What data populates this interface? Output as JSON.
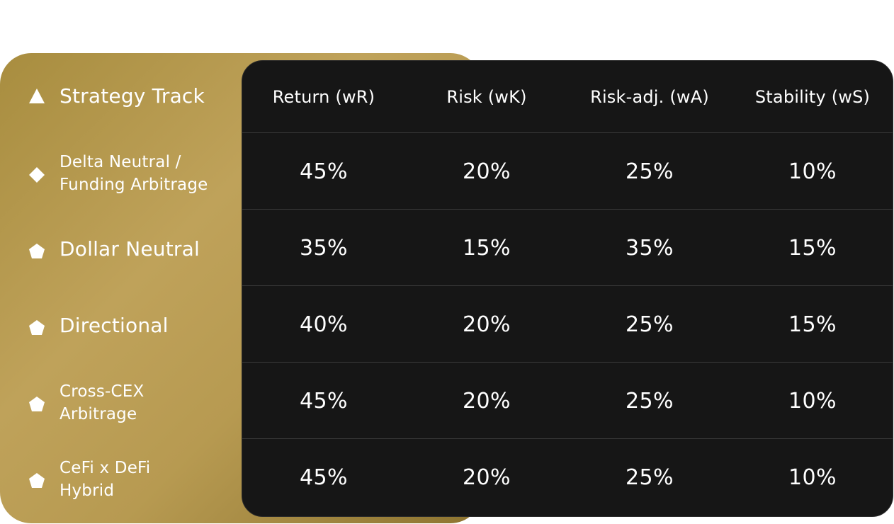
{
  "header": {
    "track_title": "Strategy Track",
    "track_icon": "triangle-icon",
    "columns": [
      "Return (wR)",
      "Risk (wK)",
      "Risk-adj. (wA)",
      "Stability (wS)"
    ]
  },
  "rows": [
    {
      "label": "Delta Neutral /\nFunding Arbitrage",
      "icon": "diamond-icon",
      "values": [
        "45%",
        "20%",
        "25%",
        "10%"
      ]
    },
    {
      "label": "Dollar Neutral",
      "icon": "pentagon-icon",
      "values": [
        "35%",
        "15%",
        "35%",
        "15%"
      ]
    },
    {
      "label": "Directional",
      "icon": "pentagon-icon",
      "values": [
        "40%",
        "20%",
        "25%",
        "15%"
      ]
    },
    {
      "label": "Cross-CEX\nArbitrage",
      "icon": "pentagon-icon",
      "values": [
        "45%",
        "20%",
        "25%",
        "10%"
      ]
    },
    {
      "label": "CeFi x DeFi\nHybrid",
      "icon": "pentagon-icon",
      "values": [
        "45%",
        "20%",
        "25%",
        "10%"
      ]
    }
  ],
  "colors": {
    "gold_start": "#a88d3f",
    "gold_mid": "#bfa25a",
    "gold_end": "#8d7430",
    "table_bg": "#161616",
    "divider": "#3a3a3a",
    "text": "#ffffff"
  }
}
